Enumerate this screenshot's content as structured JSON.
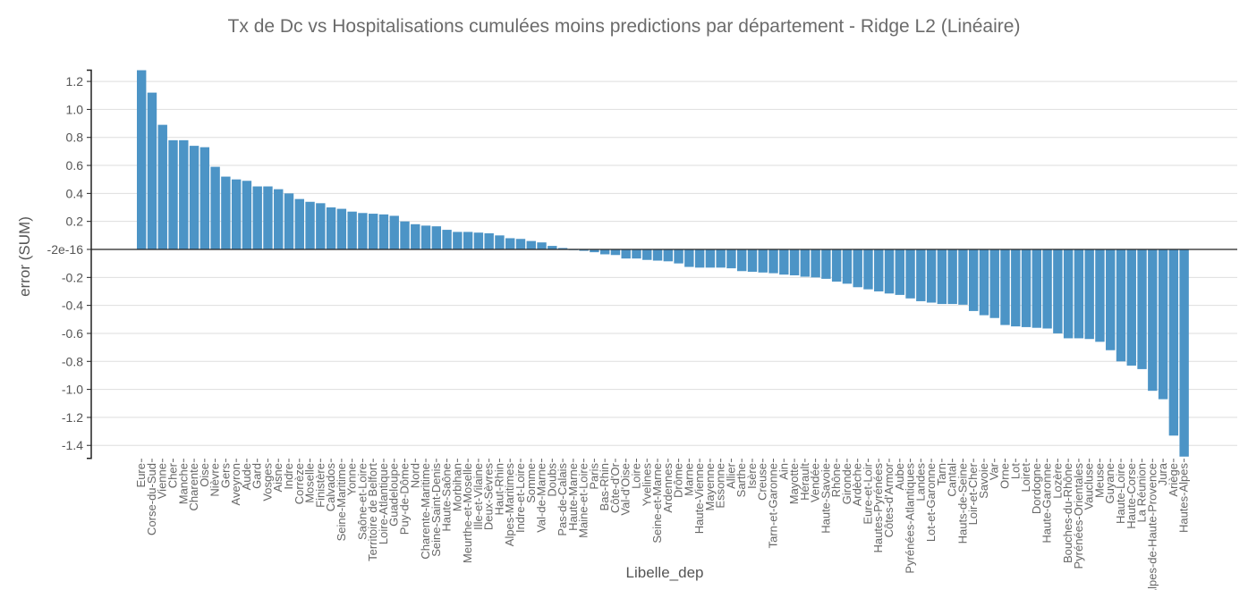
{
  "chart_data": {
    "type": "bar",
    "title": "Tx de Dc vs Hospitalisations cumulées moins predictions par département - Ridge L2 (Linéaire)",
    "xlabel": "Libelle_dep",
    "ylabel": "error (SUM)",
    "ylim": [
      -1.48,
      1.28
    ],
    "yticks": [
      -1.4,
      -1.2,
      -1.0,
      -0.8,
      -0.6,
      -0.4,
      -0.2,
      0,
      0.2,
      0.4,
      0.6,
      0.8,
      1.0,
      1.2
    ],
    "ytick_labels": [
      "-1.4",
      "-1.2",
      "-1.0",
      "-0.8",
      "-0.6",
      "-0.4",
      "-0.2",
      "-2e-16",
      "0.2",
      "0.4",
      "0.6",
      "0.8",
      "1.0",
      "1.2"
    ],
    "grid": true,
    "bar_color": "#4c94c6",
    "categories": [
      "Eure",
      "Corse-du-Sud",
      "Vienne",
      "Cher",
      "Manche",
      "Charente",
      "Oise",
      "Nièvre",
      "Gers",
      "Aveyron",
      "Aude",
      "Gard",
      "Vosges",
      "Aisne",
      "Indre",
      "Corrèze",
      "Moselle",
      "Finistère",
      "Calvados",
      "Seine-Maritime",
      "Yonne",
      "Saône-et-Loire",
      "Territoire de Belfort",
      "Loire-Atlantique",
      "Guadeloupe",
      "Puy-de-Dôme",
      "Nord",
      "Charente-Maritime",
      "Seine-Saint-Denis",
      "Haute-Saône",
      "Morbihan",
      "Meurthe-et-Moselle",
      "Ille-et-Vilaine",
      "Deux-Sèvres",
      "Haut-Rhin",
      "Alpes-Maritimes",
      "Indre-et-Loire",
      "Somme",
      "Val-de-Marne",
      "Doubs",
      "Pas-de-Calais",
      "Haute-Marne",
      "Maine-et-Loire",
      "Paris",
      "Bas-Rhin",
      "Côte-d'Or",
      "Val-d'Oise",
      "Loire",
      "Yvelines",
      "Seine-et-Marne",
      "Ardennes",
      "Drôme",
      "Marne",
      "Haute-Vienne",
      "Mayenne",
      "Essonne",
      "Allier",
      "Sarthe",
      "Isère",
      "Creuse",
      "Tarn-et-Garonne",
      "Ain",
      "Mayotte",
      "Hérault",
      "Vendée",
      "Haute-Savoie",
      "Rhône",
      "Gironde",
      "Ardèche",
      "Eure-et-Loir",
      "Hautes-Pyrénées",
      "Côtes-d'Armor",
      "Aube",
      "Pyrénées-Atlantiques",
      "Landes",
      "Lot-et-Garonne",
      "Tarn",
      "Cantal",
      "Hauts-de-Seine",
      "Loir-et-Cher",
      "Savoie",
      "Var",
      "Orne",
      "Lot",
      "Loiret",
      "Dordogne",
      "Haute-Garonne",
      "Lozère",
      "Bouches-du-Rhône",
      "Pyrénées-Orientales",
      "Vaucluse",
      "Meuse",
      "Guyane",
      "Haute-Loire",
      "Haute-Corse",
      "La Réunion",
      "Alpes-de-Haute-Provence",
      "Jura",
      "Ariège",
      "Hautes-Alpes"
    ],
    "values": [
      1.28,
      1.12,
      0.89,
      0.78,
      0.78,
      0.74,
      0.73,
      0.59,
      0.52,
      0.5,
      0.49,
      0.45,
      0.45,
      0.43,
      0.4,
      0.36,
      0.34,
      0.33,
      0.3,
      0.29,
      0.27,
      0.26,
      0.255,
      0.25,
      0.24,
      0.2,
      0.18,
      0.17,
      0.165,
      0.14,
      0.125,
      0.125,
      0.12,
      0.115,
      0.1,
      0.08,
      0.075,
      0.06,
      0.05,
      0.025,
      0.01,
      -0.005,
      -0.01,
      -0.02,
      -0.035,
      -0.04,
      -0.065,
      -0.065,
      -0.075,
      -0.08,
      -0.085,
      -0.1,
      -0.125,
      -0.13,
      -0.13,
      -0.13,
      -0.135,
      -0.155,
      -0.16,
      -0.165,
      -0.17,
      -0.18,
      -0.185,
      -0.195,
      -0.2,
      -0.21,
      -0.23,
      -0.245,
      -0.27,
      -0.285,
      -0.3,
      -0.315,
      -0.325,
      -0.35,
      -0.37,
      -0.38,
      -0.39,
      -0.39,
      -0.395,
      -0.44,
      -0.47,
      -0.49,
      -0.54,
      -0.55,
      -0.555,
      -0.56,
      -0.565,
      -0.6,
      -0.635,
      -0.635,
      -0.64,
      -0.66,
      -0.72,
      -0.8,
      -0.83,
      -0.855,
      -1.01,
      -1.07,
      -1.33,
      -1.48
    ]
  }
}
